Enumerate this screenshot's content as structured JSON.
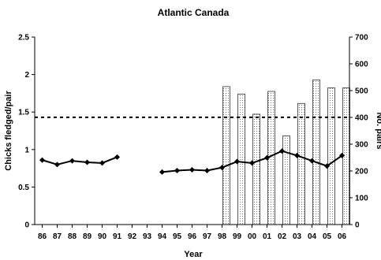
{
  "chart_data": {
    "type": "line+bar",
    "title": "Atlantic Canada",
    "xlabel": "Year",
    "ylabel_left": "Chicks fledged/pair",
    "ylabel_right": "No. pairs",
    "categories": [
      "86",
      "87",
      "88",
      "89",
      "90",
      "91",
      "92",
      "93",
      "94",
      "95",
      "96",
      "97",
      "98",
      "99",
      "00",
      "01",
      "02",
      "03",
      "04",
      "05",
      "06"
    ],
    "ylim_left": [
      0,
      2.5
    ],
    "yticks_left": [
      "0",
      "0.5",
      "1",
      "1.5",
      "2",
      "2.5"
    ],
    "ylim_right": [
      0,
      700
    ],
    "yticks_right": [
      "0",
      "100",
      "200",
      "300",
      "400",
      "500",
      "600",
      "700"
    ],
    "reference_line": {
      "axis": "left",
      "value": 1.43,
      "style": "dashed"
    },
    "series": [
      {
        "type": "line",
        "axis": "left",
        "color": "#000000",
        "marker": "diamond",
        "values": [
          0.86,
          0.8,
          0.85,
          0.83,
          0.82,
          0.9,
          null,
          null,
          0.7,
          0.72,
          0.73,
          0.72,
          0.76,
          0.84,
          0.82,
          0.89,
          0.98,
          0.92,
          0.85,
          0.78,
          0.92
        ]
      },
      {
        "type": "bar",
        "axis": "right",
        "fill": "dotted",
        "values": [
          null,
          null,
          null,
          null,
          null,
          null,
          null,
          null,
          null,
          null,
          null,
          null,
          515,
          487,
          412,
          497,
          331,
          452,
          540,
          510,
          510
        ]
      }
    ],
    "grid": false,
    "legend": "none"
  }
}
